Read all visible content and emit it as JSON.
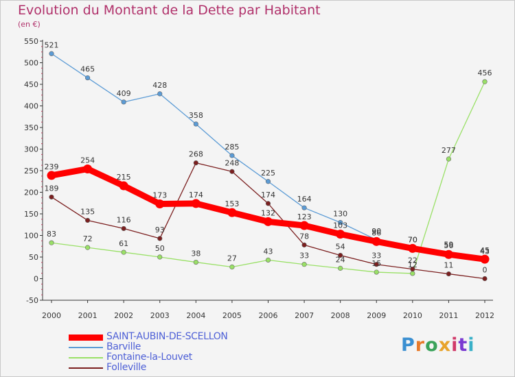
{
  "header": {
    "title": "Evolution du Montant de la Dette par Habitant",
    "subtitle": "(en €)"
  },
  "logo": {
    "text": "Proxiti",
    "colors": [
      "#3a8fd1",
      "#e87a2a",
      "#3aa25a",
      "#e8a32a",
      "#d13a6a",
      "#7a3ad1",
      "#3ab0c8"
    ]
  },
  "chart_data": {
    "type": "line",
    "title": "Evolution du Montant de la Dette par Habitant",
    "subtitle": "(en €)",
    "xlabel": "",
    "ylabel": "",
    "x": [
      "2000",
      "2001",
      "2002",
      "2003",
      "2004",
      "2005",
      "2006",
      "2007",
      "2008",
      "2009",
      "2010",
      "2011",
      "2012"
    ],
    "ylim": [
      -50,
      550
    ],
    "yticks": [
      -50,
      0,
      50,
      100,
      150,
      200,
      250,
      300,
      350,
      400,
      450,
      500,
      550
    ],
    "grid": false,
    "legend_position": "bottom-left",
    "series": [
      {
        "name": "SAINT-AUBIN-DE-SCELLON",
        "color": "#ff0000",
        "width": "thick",
        "values": [
          239,
          254,
          215,
          173,
          174,
          153,
          132,
          123,
          103,
          86,
          70,
          56,
          45
        ],
        "labels": [
          "239",
          "254",
          "215",
          "173",
          "174",
          "153",
          "132",
          "123",
          "103",
          "86",
          "70",
          "56",
          "45"
        ]
      },
      {
        "name": "Barville",
        "color": "#5b9bd5",
        "width": "thin",
        "values": [
          521,
          465,
          409,
          428,
          358,
          285,
          225,
          164,
          130,
          90,
          70,
          59,
          43
        ],
        "labels": [
          "521",
          "465",
          "409",
          "428",
          "358",
          "285",
          "225",
          "164",
          "130",
          "90",
          "70",
          "59",
          "43"
        ]
      },
      {
        "name": "Fontaine-la-Louvet",
        "color": "#99e066",
        "width": "thin",
        "values": [
          83,
          72,
          61,
          50,
          38,
          27,
          43,
          33,
          24,
          15,
          12,
          277,
          456
        ],
        "labels": [
          "83",
          "72",
          "61",
          "50",
          "38",
          "27",
          "43",
          "33",
          "24",
          "15",
          "12",
          "277",
          "456"
        ]
      },
      {
        "name": "Folleville",
        "color": "#7b1f1f",
        "width": "thin",
        "values": [
          189,
          135,
          116,
          93,
          268,
          248,
          174,
          78,
          54,
          33,
          22,
          11,
          0
        ],
        "labels": [
          "189",
          "135",
          "116",
          "93",
          "268",
          "248",
          "174",
          "78",
          "54",
          "33",
          "22",
          "11",
          "0"
        ]
      }
    ]
  }
}
